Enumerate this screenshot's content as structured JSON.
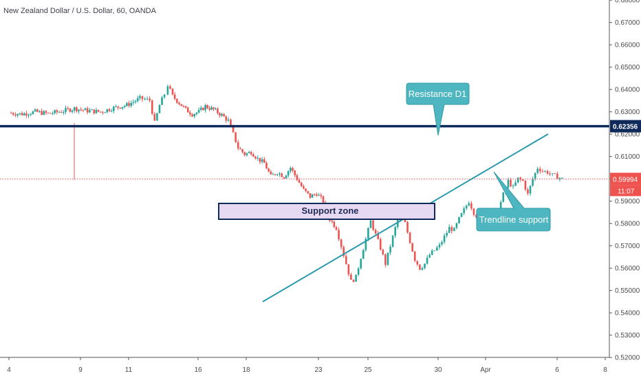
{
  "header": {
    "title": "New Zealand Dollar / U.S. Dollar, 60, OANDA"
  },
  "chart_data": {
    "type": "candlestick",
    "symbol": "NZDUSD",
    "interval": "60",
    "source": "OANDA",
    "y_axis": {
      "ylim": [
        0.5195,
        0.6865
      ],
      "ticks": [
        "0.68000",
        "0.67000",
        "0.66000",
        "0.65000",
        "0.64000",
        "0.63000",
        "0.62000",
        "0.61000",
        "0.60000",
        "0.59000",
        "0.58000",
        "0.57000",
        "0.56000",
        "0.55000",
        "0.54000",
        "0.53000",
        "0.52000"
      ]
    },
    "x_axis": {
      "ticks": [
        "4",
        "9",
        "11",
        "16",
        "18",
        "23",
        "25",
        "30",
        "Apr",
        "6",
        "8"
      ]
    },
    "price_series": [
      [
        0,
        0.6295
      ],
      [
        0.8,
        0.629
      ],
      [
        1.6,
        0.63
      ],
      [
        2.4,
        0.6292
      ],
      [
        3.2,
        0.6302
      ],
      [
        4.0,
        0.6315
      ],
      [
        4.8,
        0.6305
      ],
      [
        5.6,
        0.63
      ],
      [
        6.4,
        0.6318
      ],
      [
        7.2,
        0.633
      ],
      [
        8.0,
        0.636
      ],
      [
        8.6,
        0.6352
      ],
      [
        8.9,
        0.625
      ],
      [
        9.2,
        0.633
      ],
      [
        9.5,
        0.638
      ],
      [
        9.7,
        0.642
      ],
      [
        10.0,
        0.637
      ],
      [
        10.4,
        0.634
      ],
      [
        10.8,
        0.631
      ],
      [
        11.2,
        0.629
      ],
      [
        11.6,
        0.63
      ],
      [
        12.0,
        0.6325
      ],
      [
        12.5,
        0.631
      ],
      [
        13.0,
        0.6285
      ],
      [
        13.4,
        0.626
      ],
      [
        13.7,
        0.62
      ],
      [
        14.0,
        0.614
      ],
      [
        14.4,
        0.611
      ],
      [
        14.8,
        0.612
      ],
      [
        15.2,
        0.609
      ],
      [
        15.6,
        0.607
      ],
      [
        16.0,
        0.601
      ],
      [
        16.4,
        0.603
      ],
      [
        16.8,
        0.601
      ],
      [
        17.2,
        0.605
      ],
      [
        17.6,
        0.6
      ],
      [
        18.0,
        0.595
      ],
      [
        18.4,
        0.592
      ],
      [
        18.8,
        0.5935
      ],
      [
        19.2,
        0.59
      ],
      [
        19.6,
        0.582
      ],
      [
        20.0,
        0.578
      ],
      [
        20.3,
        0.57
      ],
      [
        20.6,
        0.562
      ],
      [
        20.9,
        0.554
      ],
      [
        21.2,
        0.556
      ],
      [
        21.5,
        0.565
      ],
      [
        21.8,
        0.573
      ],
      [
        22.1,
        0.581
      ],
      [
        22.4,
        0.575
      ],
      [
        22.7,
        0.569
      ],
      [
        23.0,
        0.562
      ],
      [
        23.3,
        0.57
      ],
      [
        23.6,
        0.578
      ],
      [
        23.9,
        0.585
      ],
      [
        24.2,
        0.58
      ],
      [
        24.5,
        0.572
      ],
      [
        24.8,
        0.564
      ],
      [
        25.1,
        0.56
      ],
      [
        25.4,
        0.562
      ],
      [
        25.7,
        0.566
      ],
      [
        26.0,
        0.568
      ],
      [
        26.3,
        0.57
      ],
      [
        26.6,
        0.574
      ],
      [
        26.9,
        0.578
      ],
      [
        27.2,
        0.577
      ],
      [
        27.5,
        0.582
      ],
      [
        27.8,
        0.586
      ],
      [
        28.1,
        0.59
      ],
      [
        28.4,
        0.585
      ],
      [
        28.7,
        0.582
      ],
      [
        29.0,
        0.581
      ],
      [
        29.3,
        0.579
      ],
      [
        29.6,
        0.583
      ],
      [
        29.9,
        0.586
      ],
      [
        30.2,
        0.593
      ],
      [
        30.5,
        0.599
      ],
      [
        30.8,
        0.596
      ],
      [
        31.1,
        0.6
      ],
      [
        31.4,
        0.599
      ],
      [
        31.7,
        0.593
      ],
      [
        32.0,
        0.6
      ],
      [
        32.3,
        0.605
      ],
      [
        32.6,
        0.6035
      ],
      [
        32.9,
        0.603
      ],
      [
        33.2,
        0.6015
      ],
      [
        33.5,
        0.601
      ],
      [
        33.8,
        0.5999
      ]
    ],
    "horizontal_lines": [
      {
        "name": "resistance-line",
        "price": 0.62356,
        "label": "0.62356",
        "color": "#0e2a5a"
      },
      {
        "name": "current-price-line",
        "price": 0.59994,
        "label": "0.59994",
        "color": "#ef5350"
      }
    ],
    "countdown_label": "11:07",
    "trendline": {
      "from": [
        0.5455,
        19.3
      ],
      "to": [
        0.6235,
        40.5
      ],
      "color": "#2a9aac"
    },
    "support_zone": {
      "label": "Support zone",
      "price_top": 0.5905,
      "price_bottom": 0.5835
    },
    "annotations": [
      {
        "name": "resistance-callout",
        "text": "Resistance D1"
      },
      {
        "name": "trendline-callout",
        "text": "Trendline support"
      }
    ],
    "colors": {
      "up": "#26a69a",
      "down": "#ef5350",
      "callout_fill": "#4db6c1",
      "zone_fill": "#e7d9f2",
      "zone_border": "#0e2a5a"
    }
  }
}
